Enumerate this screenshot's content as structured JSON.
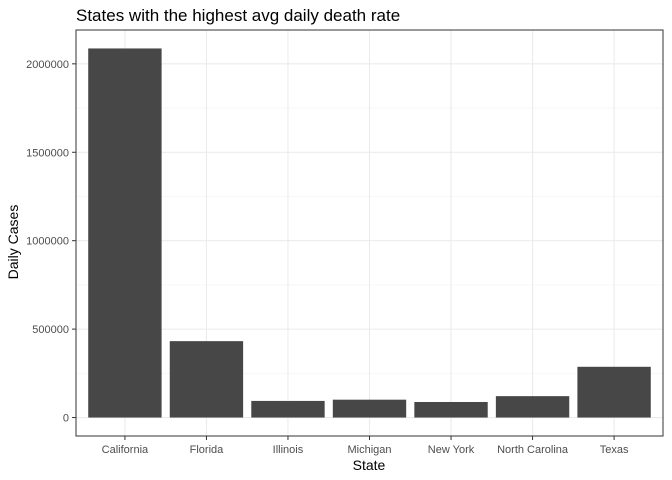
{
  "chart_data": {
    "type": "bar",
    "title": "States with the highest avg daily death rate",
    "xlabel": "State",
    "ylabel": "Daily Cases",
    "categories": [
      "California",
      "Florida",
      "Illinois",
      "Michigan",
      "New York",
      "North Carolina",
      "Texas"
    ],
    "values": [
      2087000,
      432000,
      94000,
      101000,
      88000,
      121000,
      287000
    ],
    "yticks": [
      0,
      500000,
      1000000,
      1500000,
      2000000
    ],
    "ytick_labels": [
      "0",
      "500000",
      "1000000",
      "1500000",
      "2000000"
    ],
    "ylim": [
      -104350,
      2191350
    ],
    "grid": true,
    "legend": "none",
    "bar_color": "#474747",
    "grid_major_color": "#ebebeb",
    "grid_minor_color": "#f5f5f5",
    "panel_border_color": "#333333"
  }
}
